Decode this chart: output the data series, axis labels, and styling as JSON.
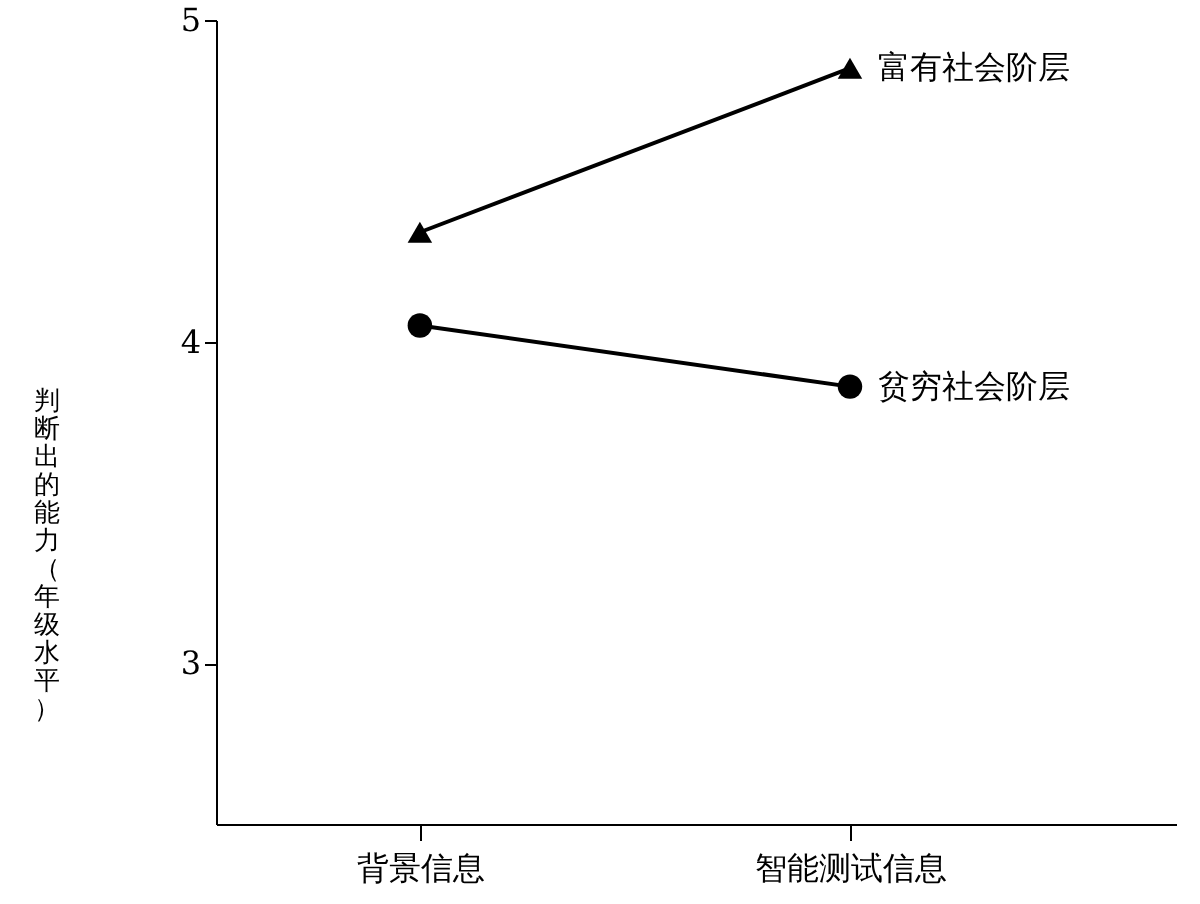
{
  "chart_data": {
    "type": "line",
    "ylabel": "判断出的能力（年级水平）",
    "categories": [
      "背景信息",
      "智能测试信息"
    ],
    "ylim": [
      2.5,
      5
    ],
    "yticks": [
      3,
      4,
      5
    ],
    "grid": false,
    "legend": "right",
    "series": [
      {
        "name": "富有社会阶层",
        "color": "#000000",
        "marker": "triangle",
        "values": [
          4.34,
          4.85
        ]
      },
      {
        "name": "贫穷社会阶层",
        "color": "#000000",
        "marker": "circle",
        "values": [
          4.05,
          3.86
        ]
      }
    ]
  }
}
